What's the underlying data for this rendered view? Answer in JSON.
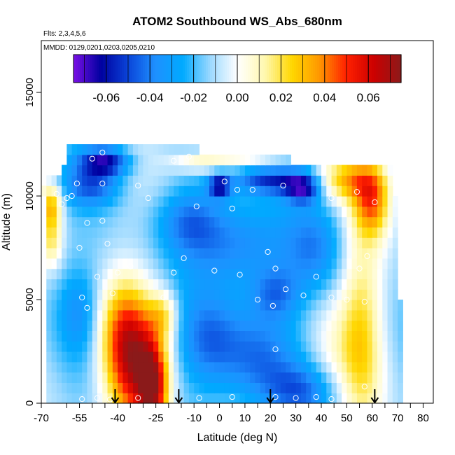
{
  "chart_data": {
    "type": "heatmap",
    "title": "ATOM2 Southbound WS_Abs_680nm",
    "flights_note": "Flts: 2,3,4,5,6",
    "dates_note": "MMDD: 0129,0201,0203,0205,0210",
    "xlabel": "Latitude (deg N)",
    "ylabel": "Altitude (m)",
    "xlim": [
      -70,
      84
    ],
    "ylim": [
      0,
      17500
    ],
    "x_ticks": [
      -70,
      -55,
      -40,
      -25,
      -10,
      0,
      10,
      20,
      30,
      40,
      50,
      60,
      70,
      80
    ],
    "x_tick_labels": [
      "-70",
      "-55",
      "-40",
      "-25",
      "-10",
      "0",
      "10",
      "20",
      "30",
      "40",
      "50",
      "60",
      "70",
      "80"
    ],
    "x_minor_ticks": [
      -60,
      -50,
      -45,
      -35,
      -30,
      -20,
      -15,
      -5,
      5,
      15,
      25,
      35,
      45,
      55,
      65,
      75
    ],
    "y_ticks": [
      0,
      5000,
      10000,
      15000
    ],
    "y_tick_labels": [
      "0",
      "5000",
      "10000",
      "15000"
    ],
    "colorbar": {
      "range": [
        -0.075,
        0.075
      ],
      "ticks": [
        -0.06,
        -0.04,
        -0.02,
        0.0,
        0.02,
        0.04,
        0.06
      ],
      "tick_labels": [
        "-0.06",
        "-0.04",
        "-0.02",
        "0.00",
        "0.02",
        "0.04",
        "0.06"
      ],
      "colors": [
        "#7a10e6",
        "#0000a0",
        "#0a44d8",
        "#1e90ff",
        "#00aaff",
        "#9ad8ff",
        "#ffffff",
        "#fff8b0",
        "#ffd700",
        "#ff9800",
        "#ff2000",
        "#cc0000",
        "#8b1a1a"
      ]
    },
    "field_extent": {
      "lat_range": [
        -68,
        72
      ],
      "alt_range": [
        0,
        12500
      ],
      "layer_alt_edges": [
        0,
        500,
        1000,
        1500,
        2000,
        2500,
        3000,
        3500,
        4000,
        4500,
        5000,
        5500,
        6000,
        6500,
        7000,
        7500,
        8000,
        8500,
        9000,
        9500,
        10000,
        10500,
        11000,
        11500,
        12000,
        12500
      ],
      "layer_lat_start": [
        -68,
        -68,
        -68,
        -68,
        -68,
        -68,
        -68,
        -68,
        -68,
        -68,
        -68,
        -68,
        -68,
        -68,
        -68,
        -68,
        -68,
        -68,
        -68,
        -68,
        -70,
        -68,
        -62,
        -60,
        -60
      ],
      "layer_lat_end": [
        72,
        72,
        72,
        72,
        72,
        72,
        72,
        72,
        72,
        72,
        70,
        70,
        70,
        70,
        70,
        70,
        70,
        70,
        70,
        70,
        68,
        68,
        68,
        28,
        -8
      ]
    },
    "field_features": [
      {
        "lat": -33,
        "alt": 1500,
        "value": 0.06,
        "lat_sigma": 8,
        "alt_sigma": 2200
      },
      {
        "lat": -26,
        "alt": 700,
        "value": 0.055,
        "lat_sigma": 4,
        "alt_sigma": 1500
      },
      {
        "lat": -38,
        "alt": 3500,
        "value": 0.035,
        "lat_sigma": 7,
        "alt_sigma": 1800
      },
      {
        "lat": -22,
        "alt": 4300,
        "value": 0.025,
        "lat_sigma": 4,
        "alt_sigma": 800
      },
      {
        "lat": 56,
        "alt": 3500,
        "value": 0.03,
        "lat_sigma": 6,
        "alt_sigma": 4000
      },
      {
        "lat": 60,
        "alt": 9800,
        "value": 0.045,
        "lat_sigma": 5,
        "alt_sigma": 1200
      },
      {
        "lat": 50,
        "alt": 10800,
        "value": 0.035,
        "lat_sigma": 9,
        "alt_sigma": 700
      },
      {
        "lat": -66,
        "alt": 9600,
        "value": 0.04,
        "lat_sigma": 3,
        "alt_sigma": 800
      },
      {
        "lat": -66,
        "alt": 7800,
        "value": 0.025,
        "lat_sigma": 3,
        "alt_sigma": 900
      },
      {
        "lat": -8,
        "alt": 11700,
        "value": 0.02,
        "lat_sigma": 8,
        "alt_sigma": 400
      },
      {
        "lat": 10,
        "alt": 11700,
        "value": 0.015,
        "lat_sigma": 12,
        "alt_sigma": 300
      },
      {
        "lat": 45,
        "alt": 2600,
        "value": 0.012,
        "lat_sigma": 8,
        "alt_sigma": 2000
      },
      {
        "lat": -5,
        "alt": 3000,
        "value": -0.025,
        "lat_sigma": 9,
        "alt_sigma": 1600
      },
      {
        "lat": 15,
        "alt": 2200,
        "value": -0.03,
        "lat_sigma": 11,
        "alt_sigma": 1800
      },
      {
        "lat": 33,
        "alt": 600,
        "value": -0.025,
        "lat_sigma": 10,
        "alt_sigma": 900
      },
      {
        "lat": 8,
        "alt": 7600,
        "value": -0.03,
        "lat_sigma": 14,
        "alt_sigma": 1500
      },
      {
        "lat": -12,
        "alt": 8800,
        "value": -0.025,
        "lat_sigma": 9,
        "alt_sigma": 1100
      },
      {
        "lat": -45,
        "alt": 11700,
        "value": -0.05,
        "lat_sigma": 7,
        "alt_sigma": 500
      },
      {
        "lat": -50,
        "alt": 10500,
        "value": -0.03,
        "lat_sigma": 8,
        "alt_sigma": 700
      },
      {
        "lat": 20,
        "alt": 10800,
        "value": -0.04,
        "lat_sigma": 10,
        "alt_sigma": 500
      },
      {
        "lat": 0,
        "alt": 10500,
        "value": -0.045,
        "lat_sigma": 3,
        "alt_sigma": 400
      },
      {
        "lat": 33,
        "alt": 10400,
        "value": -0.045,
        "lat_sigma": 5,
        "alt_sigma": 500
      },
      {
        "lat": -55,
        "alt": 4500,
        "value": -0.02,
        "lat_sigma": 6,
        "alt_sigma": 1500
      },
      {
        "lat": 22,
        "alt": 5300,
        "value": -0.025,
        "lat_sigma": 7,
        "alt_sigma": 900
      },
      {
        "lat": 38,
        "alt": 7500,
        "value": -0.02,
        "lat_sigma": 8,
        "alt_sigma": 1500
      }
    ],
    "sample_points": [
      {
        "lat": -54,
        "alt": 200
      },
      {
        "lat": -48,
        "alt": 250
      },
      {
        "lat": -43,
        "alt": 180
      },
      {
        "lat": -32,
        "alt": 250
      },
      {
        "lat": -8,
        "alt": 250
      },
      {
        "lat": 5,
        "alt": 300
      },
      {
        "lat": 22,
        "alt": 300
      },
      {
        "lat": 30,
        "alt": 250
      },
      {
        "lat": 38,
        "alt": 300
      },
      {
        "lat": 44,
        "alt": 200
      },
      {
        "lat": 57,
        "alt": 800
      },
      {
        "lat": 22,
        "alt": 2600
      },
      {
        "lat": -52,
        "alt": 4600
      },
      {
        "lat": 21,
        "alt": 4700
      },
      {
        "lat": 57,
        "alt": 4900
      },
      {
        "lat": -54,
        "alt": 5100
      },
      {
        "lat": -42,
        "alt": 5300
      },
      {
        "lat": -22,
        "alt": 5100
      },
      {
        "lat": 15,
        "alt": 5000
      },
      {
        "lat": 26,
        "alt": 5500
      },
      {
        "lat": 33,
        "alt": 5200
      },
      {
        "lat": 44,
        "alt": 5100
      },
      {
        "lat": 50,
        "alt": 5000
      },
      {
        "lat": -40,
        "alt": 6300
      },
      {
        "lat": -48,
        "alt": 6100
      },
      {
        "lat": -18,
        "alt": 6300
      },
      {
        "lat": -2,
        "alt": 6400
      },
      {
        "lat": 8,
        "alt": 6200
      },
      {
        "lat": 22,
        "alt": 6500
      },
      {
        "lat": 38,
        "alt": 6100
      },
      {
        "lat": 55,
        "alt": 6500
      },
      {
        "lat": -35,
        "alt": 6600
      },
      {
        "lat": -14,
        "alt": 7000
      },
      {
        "lat": 58,
        "alt": 7100
      },
      {
        "lat": -55,
        "alt": 7500
      },
      {
        "lat": 19,
        "alt": 7300
      },
      {
        "lat": -44,
        "alt": 7700
      },
      {
        "lat": -52,
        "alt": 8700
      },
      {
        "lat": -46,
        "alt": 8800
      },
      {
        "lat": -62,
        "alt": 9600
      },
      {
        "lat": -60,
        "alt": 9900
      },
      {
        "lat": -58,
        "alt": 10000
      },
      {
        "lat": -64,
        "alt": 10100
      },
      {
        "lat": -56,
        "alt": 10600
      },
      {
        "lat": -46,
        "alt": 10600
      },
      {
        "lat": -32,
        "alt": 10500
      },
      {
        "lat": -28,
        "alt": 9900
      },
      {
        "lat": 2,
        "alt": 10700
      },
      {
        "lat": 7,
        "alt": 10300
      },
      {
        "lat": 13,
        "alt": 10300
      },
      {
        "lat": 25,
        "alt": 10500
      },
      {
        "lat": 44,
        "alt": 9900
      },
      {
        "lat": 54,
        "alt": 10200
      },
      {
        "lat": 61,
        "alt": 9700
      },
      {
        "lat": -50,
        "alt": 11800
      },
      {
        "lat": -46,
        "alt": 12100
      },
      {
        "lat": -18,
        "alt": 11700
      },
      {
        "lat": -12,
        "alt": 11900
      },
      {
        "lat": 71,
        "alt": 11200
      },
      {
        "lat": 5,
        "alt": 9400
      },
      {
        "lat": -9,
        "alt": 9500
      }
    ],
    "arrows_lat": [
      -41,
      -16,
      20,
      61
    ]
  }
}
